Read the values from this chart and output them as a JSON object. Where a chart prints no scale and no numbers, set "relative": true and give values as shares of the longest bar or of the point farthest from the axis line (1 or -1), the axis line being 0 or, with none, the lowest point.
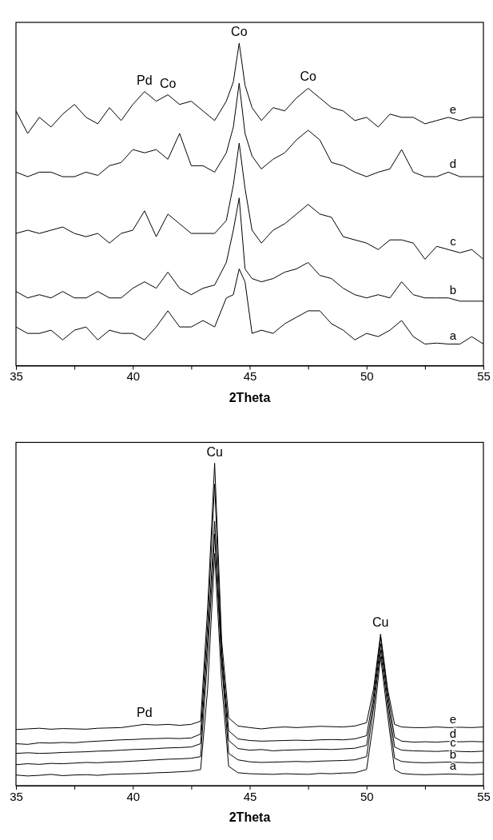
{
  "chart_data": [
    {
      "type": "line",
      "xlabel": "2Theta",
      "relative": true,
      "tick_labels": "x",
      "xlim": [
        35,
        55
      ],
      "xticks": [
        35,
        {
          "value": 37.5,
          "label": null
        },
        40,
        {
          "value": 42.5,
          "label": null
        },
        45,
        {
          "value": 47.5,
          "label": null
        },
        50,
        {
          "value": 52.5,
          "label": null
        },
        55
      ],
      "x": [
        35,
        35.5,
        36,
        36.5,
        37,
        37.5,
        38,
        38.5,
        39,
        39.5,
        40,
        40.5,
        41,
        41.5,
        42,
        42.5,
        43,
        43.5,
        44.0,
        44.3,
        44.55,
        44.8,
        45.1,
        45.5,
        46,
        46.5,
        47,
        47.5,
        48,
        48.5,
        49,
        49.5,
        50,
        50.5,
        51,
        51.5,
        52,
        52.5,
        53,
        53.5,
        54,
        54.5,
        55
      ],
      "series": [
        {
          "name": "e",
          "color": "#000000",
          "values": [
            0.79,
            0.72,
            0.77,
            0.74,
            0.78,
            0.81,
            0.77,
            0.75,
            0.8,
            0.76,
            0.81,
            0.85,
            0.82,
            0.84,
            0.81,
            0.82,
            0.79,
            0.76,
            0.82,
            0.88,
            1.0,
            0.87,
            0.8,
            0.76,
            0.8,
            0.79,
            0.83,
            0.86,
            0.83,
            0.8,
            0.79,
            0.76,
            0.77,
            0.74,
            0.78,
            0.77,
            0.77,
            0.75,
            0.76,
            0.77,
            0.76,
            0.77,
            0.77
          ]
        },
        {
          "name": "d",
          "color": "#000000",
          "values": [
            0.6,
            0.586,
            0.6,
            0.6,
            0.586,
            0.586,
            0.6,
            0.59,
            0.62,
            0.63,
            0.67,
            0.66,
            0.67,
            0.64,
            0.72,
            0.62,
            0.62,
            0.6,
            0.66,
            0.74,
            0.876,
            0.72,
            0.65,
            0.61,
            0.64,
            0.66,
            0.7,
            0.73,
            0.7,
            0.63,
            0.62,
            0.6,
            0.586,
            0.6,
            0.61,
            0.67,
            0.6,
            0.586,
            0.586,
            0.6,
            0.586,
            0.586,
            0.586
          ]
        },
        {
          "name": "c",
          "color": "#000000",
          "values": [
            0.41,
            0.42,
            0.41,
            0.42,
            0.43,
            0.41,
            0.4,
            0.41,
            0.38,
            0.41,
            0.42,
            0.48,
            0.4,
            0.47,
            0.44,
            0.41,
            0.41,
            0.41,
            0.45,
            0.56,
            0.69,
            0.55,
            0.42,
            0.38,
            0.42,
            0.44,
            0.47,
            0.5,
            0.47,
            0.46,
            0.4,
            0.39,
            0.38,
            0.36,
            0.39,
            0.39,
            0.38,
            0.33,
            0.37,
            0.36,
            0.35,
            0.36,
            0.33
          ]
        },
        {
          "name": "b",
          "color": "#000000",
          "values": [
            0.23,
            0.21,
            0.22,
            0.21,
            0.23,
            0.21,
            0.21,
            0.23,
            0.21,
            0.21,
            0.24,
            0.26,
            0.24,
            0.29,
            0.24,
            0.22,
            0.24,
            0.25,
            0.32,
            0.42,
            0.52,
            0.3,
            0.27,
            0.26,
            0.27,
            0.29,
            0.3,
            0.32,
            0.28,
            0.27,
            0.24,
            0.22,
            0.21,
            0.22,
            0.21,
            0.26,
            0.22,
            0.21,
            0.21,
            0.21,
            0.2,
            0.2,
            0.2
          ]
        },
        {
          "name": "a",
          "color": "#000000",
          "values": [
            0.12,
            0.1,
            0.1,
            0.11,
            0.08,
            0.11,
            0.12,
            0.08,
            0.11,
            0.1,
            0.1,
            0.08,
            0.12,
            0.17,
            0.12,
            0.12,
            0.14,
            0.12,
            0.21,
            0.22,
            0.3,
            0.26,
            0.1,
            0.11,
            0.1,
            0.13,
            0.15,
            0.17,
            0.17,
            0.13,
            0.11,
            0.08,
            0.1,
            0.09,
            0.11,
            0.14,
            0.09,
            0.067,
            0.07,
            0.067,
            0.067,
            0.09,
            0.067
          ]
        }
      ],
      "annotations": [
        {
          "text": "Pd",
          "x": 40.5,
          "y": 0.85
        },
        {
          "text": "Co",
          "x": 41.5,
          "y": 0.84
        },
        {
          "text": "Co",
          "x": 44.55,
          "y": 1.0
        },
        {
          "text": "Co",
          "x": 47.5,
          "y": 0.86
        }
      ]
    },
    {
      "type": "line",
      "xlabel": "2Theta",
      "relative": true,
      "tick_labels": "x",
      "xlim": [
        35,
        55
      ],
      "xticks": [
        35,
        {
          "value": 37.5,
          "label": null
        },
        40,
        {
          "value": 42.5,
          "label": null
        },
        45,
        {
          "value": 47.5,
          "label": null
        },
        50,
        {
          "value": 52.5,
          "label": null
        },
        55
      ],
      "x": [
        35,
        35.5,
        36,
        36.5,
        37,
        37.5,
        38,
        38.5,
        39,
        39.5,
        40,
        40.5,
        41,
        41.5,
        42,
        42.5,
        42.9,
        43.2,
        43.5,
        43.8,
        44.1,
        44.5,
        45,
        45.5,
        46,
        46.5,
        47,
        47.5,
        48,
        48.5,
        49,
        49.5,
        50.0,
        50.3,
        50.6,
        50.9,
        51.2,
        51.5,
        52,
        52.5,
        53,
        53.5,
        54,
        54.5,
        55
      ],
      "series": [
        {
          "name": "e",
          "color": "#000000",
          "values": [
            0.174,
            0.176,
            0.178,
            0.175,
            0.177,
            0.176,
            0.175,
            0.178,
            0.179,
            0.18,
            0.185,
            0.19,
            0.188,
            0.19,
            0.187,
            0.19,
            0.2,
            0.55,
            1.0,
            0.45,
            0.21,
            0.185,
            0.18,
            0.176,
            0.18,
            0.182,
            0.18,
            0.182,
            0.184,
            0.183,
            0.182,
            0.185,
            0.195,
            0.3,
            0.47,
            0.3,
            0.19,
            0.182,
            0.18,
            0.18,
            0.182,
            0.18,
            0.181,
            0.18,
            0.182
          ]
        },
        {
          "name": "d",
          "color": "#000000",
          "values": [
            0.13,
            0.128,
            0.133,
            0.132,
            0.134,
            0.133,
            0.136,
            0.138,
            0.14,
            0.142,
            0.143,
            0.145,
            0.146,
            0.147,
            0.146,
            0.148,
            0.16,
            0.5,
            0.935,
            0.42,
            0.17,
            0.145,
            0.14,
            0.138,
            0.139,
            0.14,
            0.141,
            0.14,
            0.142,
            0.143,
            0.142,
            0.145,
            0.155,
            0.28,
            0.46,
            0.29,
            0.15,
            0.138,
            0.135,
            0.136,
            0.135,
            0.137,
            0.136,
            0.137,
            0.136
          ]
        },
        {
          "name": "c",
          "color": "#000000",
          "values": [
            0.1,
            0.102,
            0.1,
            0.101,
            0.103,
            0.104,
            0.105,
            0.107,
            0.108,
            0.11,
            0.112,
            0.113,
            0.115,
            0.117,
            0.118,
            0.12,
            0.13,
            0.45,
            0.82,
            0.4,
            0.14,
            0.115,
            0.11,
            0.112,
            0.108,
            0.11,
            0.111,
            0.112,
            0.113,
            0.112,
            0.114,
            0.116,
            0.125,
            0.26,
            0.44,
            0.27,
            0.12,
            0.11,
            0.108,
            0.107,
            0.106,
            0.108,
            0.106,
            0.105,
            0.107
          ]
        },
        {
          "name": "b",
          "color": "#000000",
          "values": [
            0.065,
            0.068,
            0.066,
            0.069,
            0.068,
            0.07,
            0.072,
            0.071,
            0.073,
            0.074,
            0.076,
            0.078,
            0.08,
            0.082,
            0.083,
            0.085,
            0.09,
            0.4,
            0.78,
            0.38,
            0.1,
            0.08,
            0.074,
            0.072,
            0.073,
            0.074,
            0.075,
            0.074,
            0.076,
            0.077,
            0.078,
            0.08,
            0.09,
            0.24,
            0.42,
            0.25,
            0.085,
            0.075,
            0.072,
            0.071,
            0.072,
            0.073,
            0.072,
            0.071,
            0.072
          ]
        },
        {
          "name": "a",
          "color": "#000000",
          "values": [
            0.033,
            0.03,
            0.032,
            0.035,
            0.031,
            0.033,
            0.034,
            0.032,
            0.035,
            0.036,
            0.037,
            0.038,
            0.04,
            0.041,
            0.043,
            0.045,
            0.05,
            0.3,
            0.72,
            0.32,
            0.06,
            0.04,
            0.037,
            0.036,
            0.035,
            0.037,
            0.036,
            0.035,
            0.038,
            0.037,
            0.039,
            0.04,
            0.05,
            0.2,
            0.4,
            0.22,
            0.05,
            0.038,
            0.035,
            0.034,
            0.035,
            0.036,
            0.035,
            0.034,
            0.036
          ]
        }
      ],
      "annotations": [
        {
          "text": "Cu",
          "x": 43.5,
          "y": 1.0
        },
        {
          "text": "Cu",
          "x": 50.6,
          "y": 0.47
        },
        {
          "text": "Pd",
          "x": 40.5,
          "y": 0.19
        }
      ]
    }
  ]
}
